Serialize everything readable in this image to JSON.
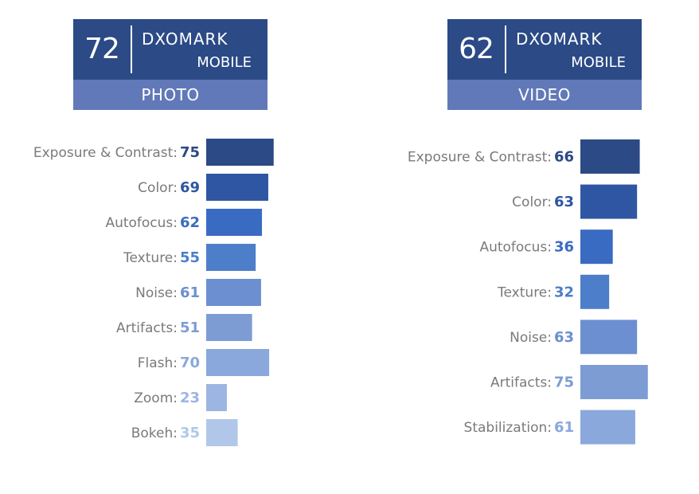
{
  "brand": "DXOMARK",
  "badges": {
    "photo": {
      "score": "72",
      "sub": "MOBILE",
      "category": "PHOTO"
    },
    "video": {
      "score": "62",
      "sub": "MOBILE",
      "category": "VIDEO"
    }
  },
  "colors": {
    "badge_top": "#2b4a86",
    "badge_bottom": "#6179b8",
    "label": "#7a7a7a"
  },
  "chart_data": [
    {
      "type": "bar",
      "orientation": "horizontal",
      "categories": [
        "Exposure & Contrast",
        "Color",
        "Autofocus",
        "Texture",
        "Noise",
        "Artifacts",
        "Flash",
        "Zoom",
        "Bokeh"
      ],
      "values": [
        75,
        69,
        62,
        55,
        61,
        51,
        70,
        23,
        35
      ],
      "colors": [
        "#2b4a86",
        "#2e56a2",
        "#3a6bc2",
        "#4d7ec9",
        "#6b8fd0",
        "#7d9cd4",
        "#8aa8db",
        "#9cb5e2",
        "#b1c7ea"
      ],
      "title": "",
      "xlabel": "",
      "ylabel": "",
      "xlim": [
        0,
        100
      ],
      "grid": false,
      "legend": "none"
    },
    {
      "type": "bar",
      "orientation": "horizontal",
      "categories": [
        "Exposure & Contrast",
        "Color",
        "Autofocus",
        "Texture",
        "Noise",
        "Artifacts",
        "Stabilization"
      ],
      "values": [
        66,
        63,
        36,
        32,
        63,
        75,
        61
      ],
      "colors": [
        "#2b4a86",
        "#2e56a2",
        "#3a6bc2",
        "#4d7ec9",
        "#6b8fd0",
        "#7d9cd4",
        "#8aa8db"
      ],
      "title": "",
      "xlabel": "",
      "ylabel": "",
      "xlim": [
        0,
        100
      ],
      "grid": false,
      "legend": "none"
    }
  ]
}
